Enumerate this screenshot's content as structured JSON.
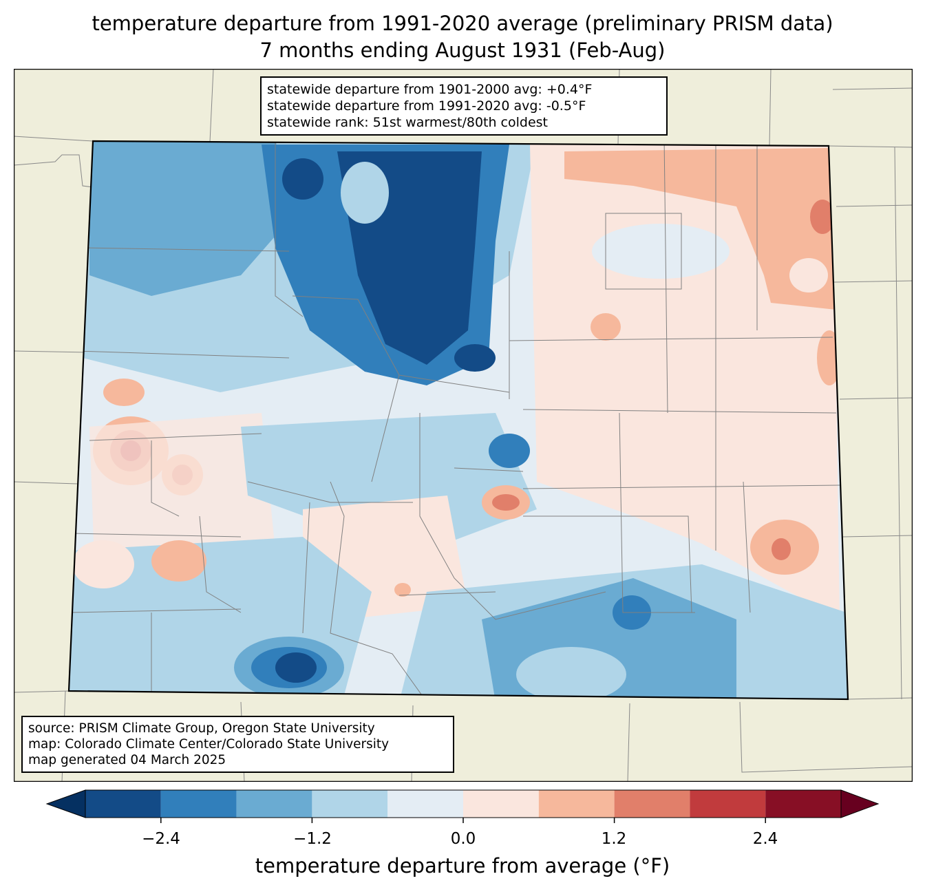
{
  "title": {
    "line1": "temperature departure from 1991-2020 average (preliminary PRISM data)",
    "line2": "7 months ending August 1931 (Feb-Aug)"
  },
  "stats": {
    "line1": "statewide departure from 1901-2000 avg: +0.4°F",
    "line2": "statewide departure from 1991-2020 avg: -0.5°F",
    "line3": "statewide rank: 51st warmest/80th coldest"
  },
  "source": {
    "line1": "source: PRISM Climate Group, Oregon State University",
    "line2": "map: Colorado Climate Center/Colorado State University",
    "line3": "map generated 04 March 2025"
  },
  "colorbar": {
    "label": "temperature departure from average (°F)",
    "ticks": [
      "−2.4",
      "−1.2",
      "0.0",
      "1.2",
      "2.4"
    ],
    "bins": [
      {
        "from": -3.0,
        "to": -2.4,
        "color": "#134b87"
      },
      {
        "from": -2.4,
        "to": -1.8,
        "color": "#317fbb"
      },
      {
        "from": -1.8,
        "to": -1.2,
        "color": "#6aabd2"
      },
      {
        "from": -1.2,
        "to": -0.6,
        "color": "#b0d5e8"
      },
      {
        "from": -0.6,
        "to": 0.0,
        "color": "#e4edf4"
      },
      {
        "from": 0.0,
        "to": 0.6,
        "color": "#fae6de"
      },
      {
        "from": 0.6,
        "to": 1.2,
        "color": "#f6b89c"
      },
      {
        "from": 1.2,
        "to": 1.8,
        "color": "#e17f6a"
      },
      {
        "from": 1.8,
        "to": 2.4,
        "color": "#c13b3d"
      },
      {
        "from": 2.4,
        "to": 3.0,
        "color": "#870f25"
      }
    ],
    "under_color": "#053061",
    "over_color": "#67001f"
  },
  "map": {
    "background_color": "#efeedb",
    "state": "Colorado"
  }
}
